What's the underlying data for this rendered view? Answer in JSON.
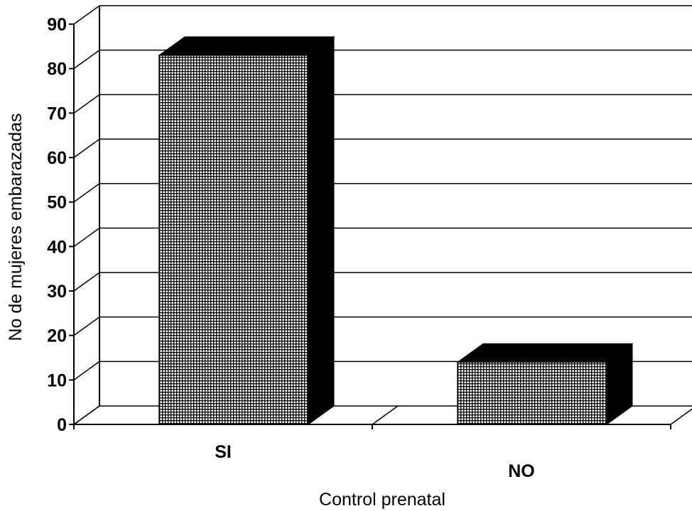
{
  "chart_data": {
    "type": "bar",
    "title": "",
    "xlabel": "Control prenatal",
    "ylabel": "No de mujeres embarazadas",
    "categories": [
      "SI",
      "NO"
    ],
    "values": [
      83,
      14
    ],
    "ylim": [
      0,
      90
    ],
    "yticks": [
      0,
      10,
      20,
      30,
      40,
      50,
      60,
      70,
      80,
      90
    ],
    "grid": true,
    "legend": "none",
    "bar_color": "#000000",
    "bar_pattern": "crosshatch",
    "background": "#ffffff"
  }
}
